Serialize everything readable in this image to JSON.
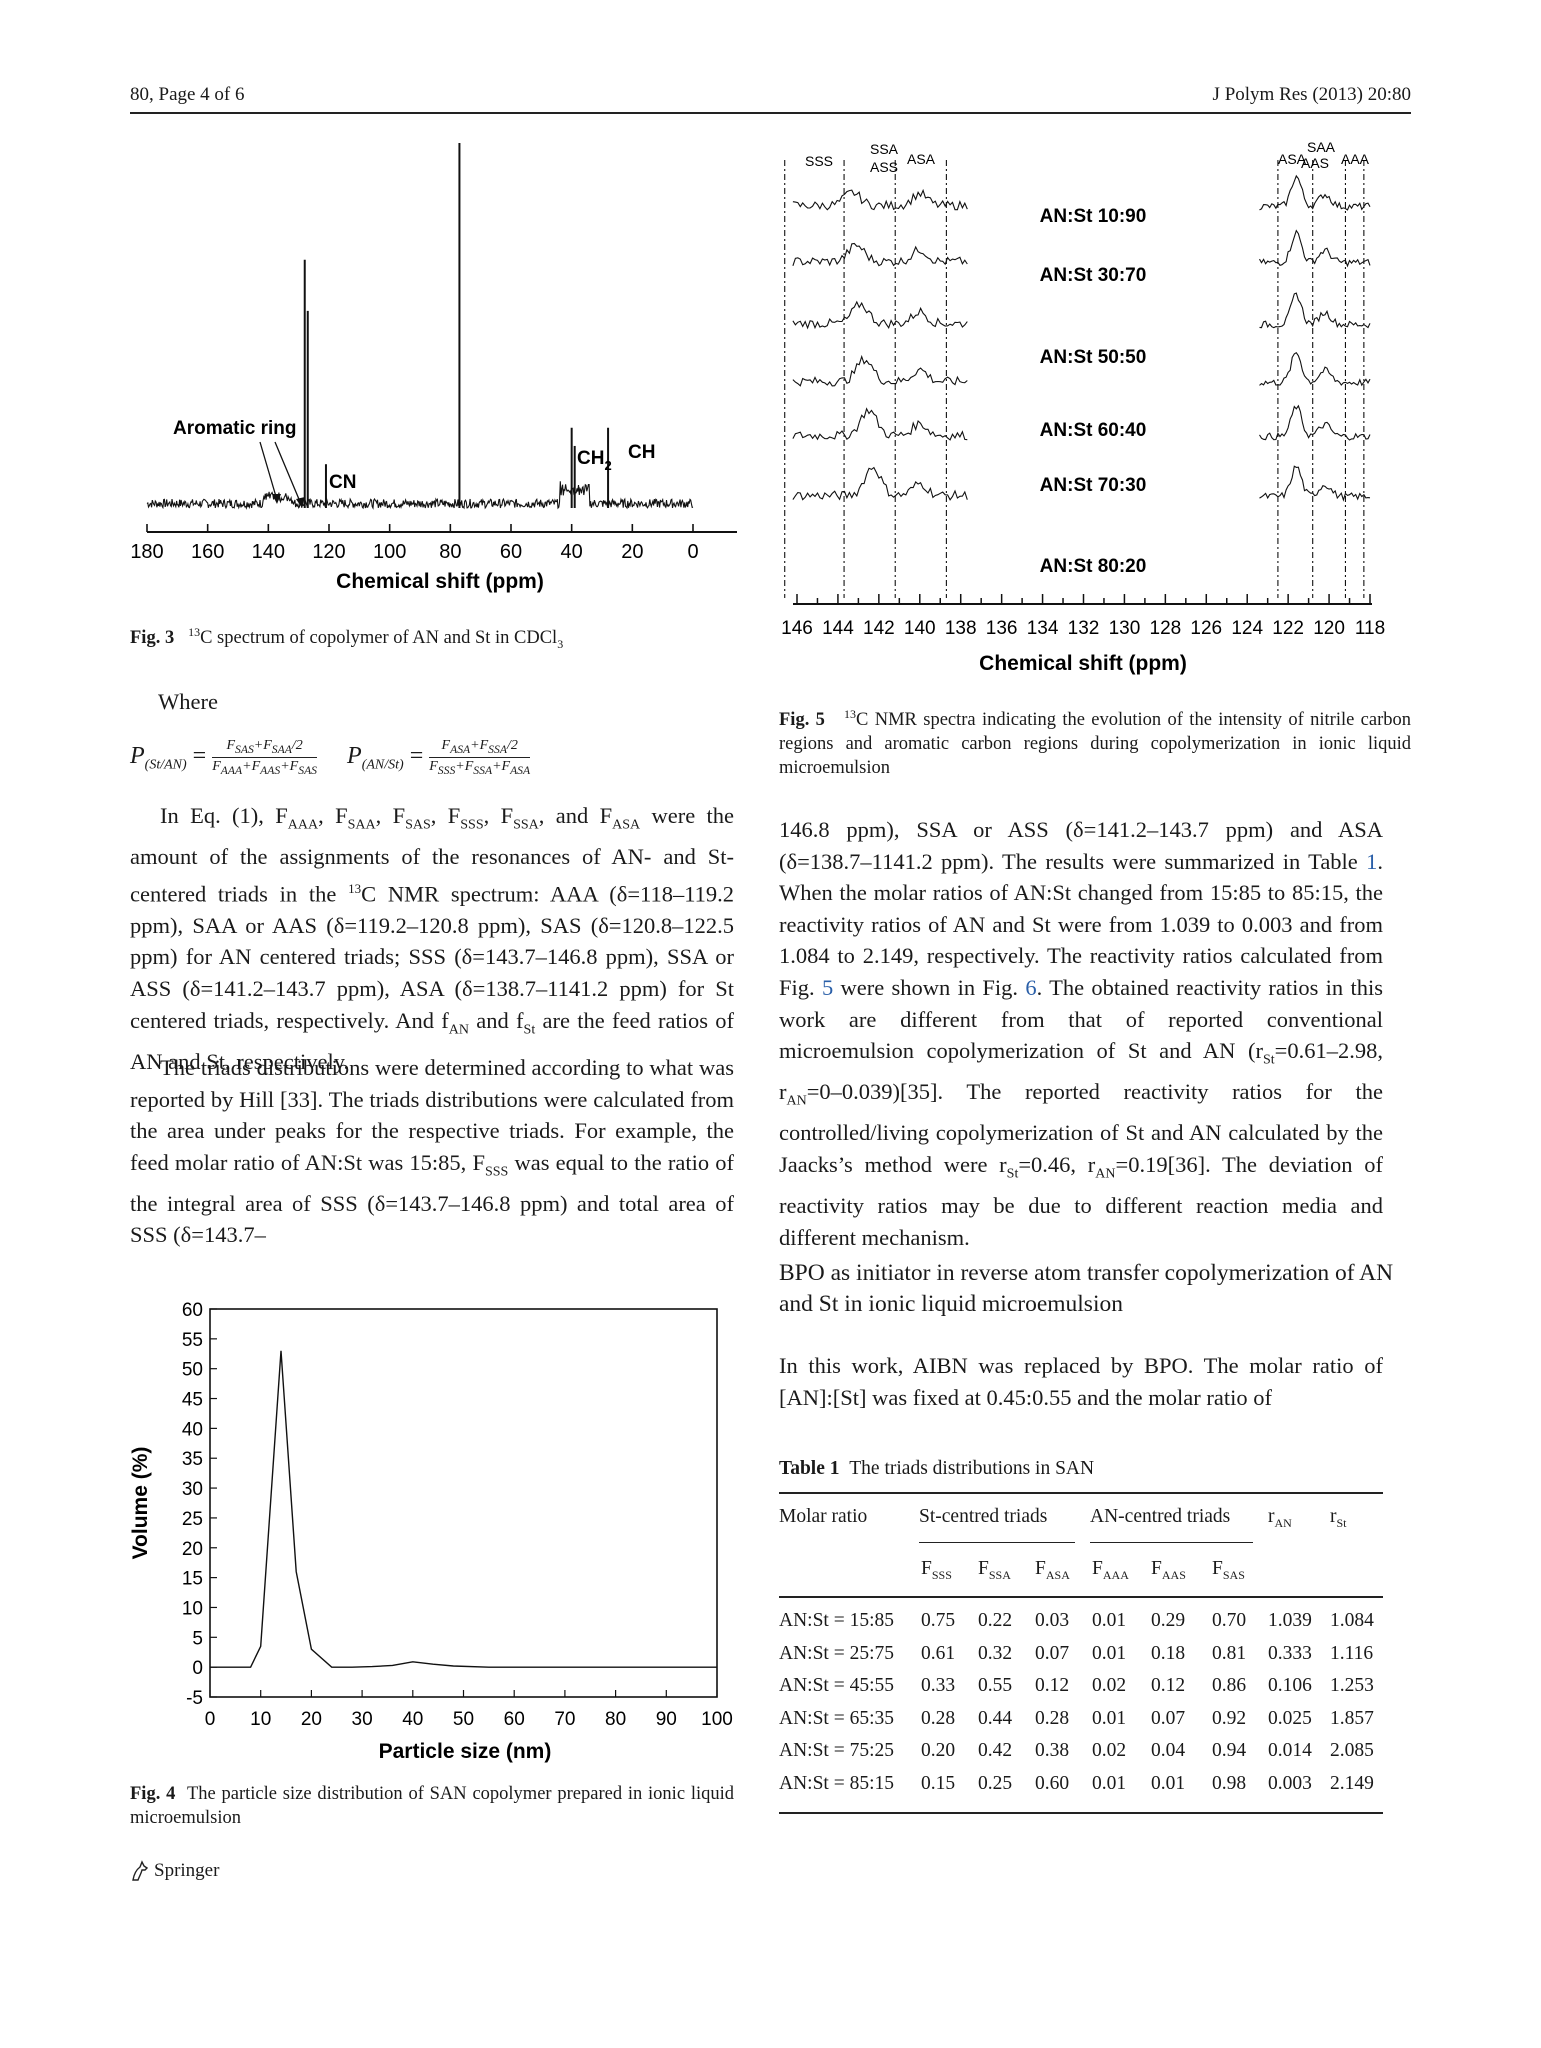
{
  "header": {
    "left": "80, Page 4 of 6",
    "right": "J Polym Res (2013) 20:80"
  },
  "fig3": {
    "caption_label": "Fig. 3",
    "caption_sup": "13",
    "caption_text": "C spectrum of copolymer of AN and St in CDCl",
    "caption_sub": "3",
    "annotations": {
      "aromatic": "Aromatic ring",
      "cn": "CN",
      "ch2": "CH",
      "ch2_sub": "2",
      "ch": "CH"
    },
    "chart_data": {
      "type": "line",
      "xlabel": "Chemical shift (ppm)",
      "x_ticks": [
        180,
        160,
        140,
        120,
        100,
        80,
        60,
        40,
        20,
        0
      ],
      "xlim": [
        180,
        0
      ],
      "peaks": [
        {
          "x": 128,
          "rel_height": 0.68
        },
        {
          "x": 127,
          "rel_height": 0.54
        },
        {
          "x": 121,
          "rel_height": 0.12
        },
        {
          "x": 77,
          "rel_height": 1.0
        },
        {
          "x": 40,
          "rel_height": 0.22
        },
        {
          "x": 39,
          "rel_height": 0.17
        },
        {
          "x": 28,
          "rel_height": 0.22
        }
      ]
    }
  },
  "fig5": {
    "caption_label": "Fig. 5",
    "caption_sup": "13",
    "caption_text": "C NMR spectra indicating the evolution of the intensity of nitrile carbon regions and aromatic carbon regions during copolymerization in ionic liquid microemulsion",
    "region_labels": {
      "sss": "SSS",
      "ssa": "SSA",
      "ass": "ASS",
      "asa_left": "ASA",
      "asa_right": "ASA",
      "saa": "SAA",
      "aas": "AAS",
      "aaa": "AAA"
    },
    "chart_data": {
      "type": "line",
      "xlabel": "Chemical shift (ppm)",
      "x_ticks": [
        146,
        144,
        142,
        140,
        138,
        136,
        134,
        132,
        130,
        128,
        126,
        124,
        122,
        120,
        118
      ],
      "xlim": [
        146,
        118
      ],
      "series": [
        {
          "name": "AN:St 10:90"
        },
        {
          "name": "AN:St 30:70"
        },
        {
          "name": "AN:St 50:50"
        },
        {
          "name": "AN:St 60:40"
        },
        {
          "name": "AN:St 70:30"
        },
        {
          "name": "AN:St 80:20"
        }
      ]
    }
  },
  "left_text": {
    "where": "Where",
    "eq": {
      "p1": "P",
      "p1_sub": "(St/AN)",
      "f1_num": "F",
      "f1_num_a": "SAS",
      "f1_num_b": "+F",
      "f1_num_c": "SAA",
      "f1_num_d": "/2",
      "f1_den": "F",
      "f1_den_a": "AAA",
      "f1_den_b": "+F",
      "f1_den_c": "AAS",
      "f1_den_d": "+F",
      "f1_den_e": "SAS",
      "p2": "P",
      "p2_sub": "(AN/St)",
      "f2_num": "F",
      "f2_num_a": "ASA",
      "f2_num_b": "+F",
      "f2_num_c": "SSA",
      "f2_num_d": "/2",
      "f2_den": "F",
      "f2_den_a": "SSS",
      "f2_den_b": "+F",
      "f2_den_c": "SSA",
      "f2_den_d": "+F",
      "f2_den_e": "ASA"
    },
    "p1_html_parts": [
      "In Eq. (1), F",
      "AAA",
      ", F",
      "SAA",
      ", F",
      "SAS",
      ", F",
      "SSS",
      ", F",
      "SSA",
      ", and F",
      "ASA",
      " were the amount of the assignments of the resonances of AN- and St-centered triads in the ",
      "13",
      "C NMR spectrum: AAA (δ=118–119.2 ppm), SAA or AAS (δ=119.2–120.8 ppm), SAS (δ=120.8–122.5 ppm) for AN centered triads; SSS (δ=143.7–146.8 ppm), SSA or ASS (δ=141.2–143.7 ppm), ASA (δ=138.7–1141.2 ppm) for St centered triads, respectively. And f",
      "AN",
      " and f",
      "St",
      " are the feed ratios of AN and St, respectively."
    ],
    "p2_parts": [
      "The triads distributions were determined according to what was reported by Hill [",
      "33",
      "]. The triads distributions were calculated from the area under peaks for the respective triads. For example, the feed molar ratio of AN:St was 15:85, F",
      "SSS",
      " was equal to the ratio of the integral area of SSS (δ=143.7–146.8 ppm) and total area of SSS (δ=143.7–"
    ]
  },
  "fig4": {
    "caption_label": "Fig. 4",
    "caption_text": "The particle size distribution of SAN copolymer prepared in ionic liquid microemulsion",
    "chart_data": {
      "type": "line",
      "xlabel": "Particle size (nm)",
      "ylabel": "Volume (%)",
      "xlim": [
        0,
        100
      ],
      "ylim": [
        -5,
        60
      ],
      "x_ticks": [
        0,
        10,
        20,
        30,
        40,
        50,
        60,
        70,
        80,
        90,
        100
      ],
      "y_ticks": [
        60,
        55,
        50,
        45,
        40,
        35,
        30,
        25,
        20,
        15,
        10,
        5,
        0,
        -5
      ],
      "x": [
        0,
        8,
        10,
        14,
        17,
        20,
        24,
        28,
        32,
        36,
        40,
        44,
        48,
        55,
        65,
        80,
        100
      ],
      "y": [
        0,
        0,
        3.5,
        53,
        16,
        3,
        0,
        0,
        0.1,
        0.3,
        0.9,
        0.5,
        0.2,
        0,
        0,
        0,
        0
      ]
    }
  },
  "right_text": {
    "p1_parts": [
      "146.8 ppm), SSA or ASS (δ=141.2–143.7 ppm) and ASA (δ=138.7–1141.2 ppm). The results were summarized in Table ",
      "1",
      ". When the molar ratios of AN:St changed from 15:85 to 85:15, the reactivity ratios of AN and St were from 1.039 to 0.003 and from 1.084 to 2.149, respectively. The reactivity ratios calculated from Fig. ",
      "5",
      " were shown in Fig. ",
      "6",
      ". The obtained reactivity ratios in this work are different from that of reported conventional microemulsion copolymerization of St and AN (r",
      "St",
      "=0.61–2.98, r",
      "AN",
      "=0–0.039)[35]. The reported reactivity ratios for the controlled/living copolymerization of St and AN calculated by the Jaacks’s method were r",
      "St",
      "=0.46, r",
      "AN",
      "=0.19[36]. The deviation of reactivity ratios may be due to different reaction media and different mechanism."
    ],
    "section_title": "BPO as initiator in reverse atom transfer copolymerization of AN and St in ionic liquid microemulsion",
    "p2": "In this work, AIBN was replaced by BPO. The molar ratio of [AN]:[St] was fixed at 0.45:0.55 and the molar ratio of"
  },
  "table1": {
    "label": "Table 1",
    "title": "The triads distributions in SAN",
    "head": {
      "molar": "Molar ratio",
      "st_group": "St-centred triads",
      "an_group": "AN-centred triads",
      "ran": "r",
      "ran_sub": "AN",
      "rst": "r",
      "rst_sub": "St",
      "cols": [
        {
          "main": "F",
          "sub": "SSS"
        },
        {
          "main": "F",
          "sub": "SSA"
        },
        {
          "main": "F",
          "sub": "ASA"
        },
        {
          "main": "F",
          "sub": "AAA"
        },
        {
          "main": "F",
          "sub": "AAS"
        },
        {
          "main": "F",
          "sub": "SAS"
        }
      ]
    },
    "rows": [
      [
        "AN:St = 15:85",
        "0.75",
        "0.22",
        "0.03",
        "0.01",
        "0.29",
        "0.70",
        "1.039",
        "1.084"
      ],
      [
        "AN:St = 25:75",
        "0.61",
        "0.32",
        "0.07",
        "0.01",
        "0.18",
        "0.81",
        "0.333",
        "1.116"
      ],
      [
        "AN:St = 45:55",
        "0.33",
        "0.55",
        "0.12",
        "0.02",
        "0.12",
        "0.86",
        "0.106",
        "1.253"
      ],
      [
        "AN:St = 65:35",
        "0.28",
        "0.44",
        "0.28",
        "0.01",
        "0.07",
        "0.92",
        "0.025",
        "1.857"
      ],
      [
        "AN:St = 75:25",
        "0.20",
        "0.42",
        "0.38",
        "0.02",
        "0.04",
        "0.94",
        "0.014",
        "2.085"
      ],
      [
        "AN:St = 85:15",
        "0.15",
        "0.25",
        "0.60",
        "0.01",
        "0.01",
        "0.98",
        "0.003",
        "2.149"
      ]
    ]
  },
  "footer": {
    "publisher": "Springer"
  }
}
